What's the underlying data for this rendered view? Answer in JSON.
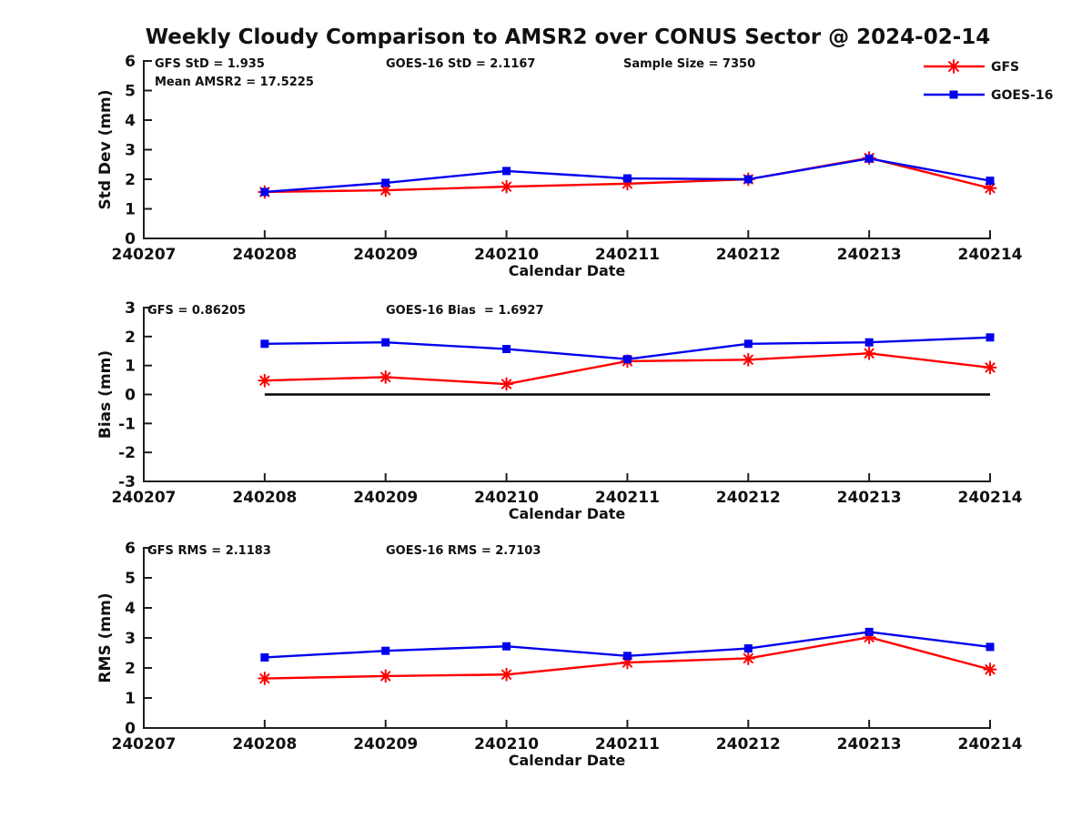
{
  "title": "Weekly Cloudy Comparison to AMSR2 over CONUS Sector @ 2024-02-14",
  "colors": {
    "gfs": "#ff0000",
    "goes16": "#0000ee",
    "axis": "#1f1f1f",
    "zero_line": "#000000",
    "text": "#111111"
  },
  "legend": {
    "items": [
      {
        "label": "GFS",
        "color": "#ff0000",
        "marker": "asterisk"
      },
      {
        "label": "GOES-16",
        "color": "#0000ee",
        "marker": "square"
      }
    ]
  },
  "chart_data": [
    {
      "id": "std_dev",
      "type": "line",
      "ylabel": "Std Dev (mm)",
      "xlabel": "Calendar Date",
      "ylim": [
        0,
        6
      ],
      "ytick_step": 1,
      "x_ticks": [
        "240207",
        "240208",
        "240209",
        "240210",
        "240211",
        "240212",
        "240213",
        "240214"
      ],
      "categories": [
        "240208",
        "240209",
        "240210",
        "240211",
        "240212",
        "240213",
        "240214"
      ],
      "series": [
        {
          "name": "GFS",
          "marker": "asterisk",
          "color": "#ff0000",
          "values": [
            1.57,
            1.63,
            1.75,
            1.85,
            2.0,
            2.72,
            1.7
          ]
        },
        {
          "name": "GOES-16",
          "marker": "square",
          "color": "#0000ee",
          "values": [
            1.57,
            1.88,
            2.28,
            2.03,
            2.0,
            2.7,
            1.95
          ]
        }
      ],
      "annotations": [
        {
          "text": "GFS StD = 1.935",
          "dx": 12,
          "row": 0
        },
        {
          "text": "Mean AMSR2 = 17.5225",
          "dx": 12,
          "row": 1
        },
        {
          "text": "GOES-16 StD = 2.1167",
          "dx": 266,
          "row": 0
        },
        {
          "text": "Sample Size = 7350",
          "dx": 527,
          "row": 0
        }
      ],
      "zero_line": false,
      "show_legend": true,
      "grid": false,
      "legend_position": "upper-right-outside"
    },
    {
      "id": "bias",
      "type": "line",
      "ylabel": "Bias (mm)",
      "xlabel": "Calendar Date",
      "ylim": [
        -3,
        3
      ],
      "ytick_step": 1,
      "x_ticks": [
        "240207",
        "240208",
        "240209",
        "240210",
        "240211",
        "240212",
        "240213",
        "240214"
      ],
      "categories": [
        "240208",
        "240209",
        "240210",
        "240211",
        "240212",
        "240213",
        "240214"
      ],
      "series": [
        {
          "name": "GFS",
          "marker": "asterisk",
          "color": "#ff0000",
          "values": [
            0.48,
            0.6,
            0.36,
            1.15,
            1.2,
            1.42,
            0.93
          ]
        },
        {
          "name": "GOES-16",
          "marker": "square",
          "color": "#0000ee",
          "values": [
            1.75,
            1.8,
            1.57,
            1.22,
            1.75,
            1.8,
            1.97
          ]
        }
      ],
      "annotations": [
        {
          "text": "GFS = 0.86205",
          "dx": 4,
          "row": 0
        },
        {
          "text": "GOES-16 Bias  = 1.6927",
          "dx": 266,
          "row": 0
        }
      ],
      "zero_line": true,
      "show_legend": false,
      "grid": false
    },
    {
      "id": "rms",
      "type": "line",
      "ylabel": "RMS (mm)",
      "xlabel": "Calendar Date",
      "ylim": [
        0,
        6
      ],
      "ytick_step": 1,
      "x_ticks": [
        "240207",
        "240208",
        "240209",
        "240210",
        "240211",
        "240212",
        "240213",
        "240214"
      ],
      "categories": [
        "240208",
        "240209",
        "240210",
        "240211",
        "240212",
        "240213",
        "240214"
      ],
      "series": [
        {
          "name": "GFS",
          "marker": "asterisk",
          "color": "#ff0000",
          "values": [
            1.65,
            1.73,
            1.78,
            2.18,
            2.32,
            3.02,
            1.95
          ]
        },
        {
          "name": "GOES-16",
          "marker": "square",
          "color": "#0000ee",
          "values": [
            2.35,
            2.57,
            2.72,
            2.4,
            2.65,
            3.2,
            2.7
          ]
        }
      ],
      "annotations": [
        {
          "text": "GFS RMS = 2.1183",
          "dx": 4,
          "row": 0
        },
        {
          "text": "GOES-16 RMS = 2.7103",
          "dx": 266,
          "row": 0
        }
      ],
      "zero_line": false,
      "show_legend": false,
      "grid": false
    }
  ]
}
